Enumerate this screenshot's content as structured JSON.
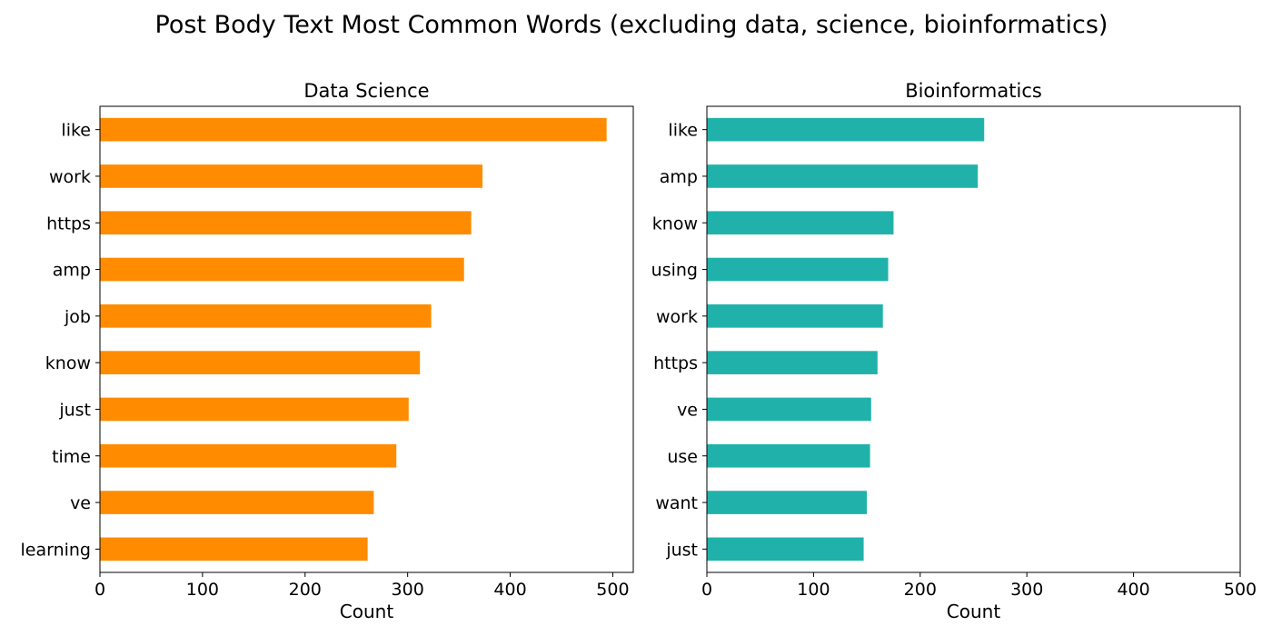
{
  "figure": {
    "title": "Post Body Text Most Common Words (excluding data, science, bioinformatics)"
  },
  "chart_data": [
    {
      "type": "bar",
      "orientation": "horizontal",
      "title": "Data Science",
      "xlabel": "Count",
      "ylabel": "",
      "xlim": [
        0,
        520
      ],
      "xticks": [
        0,
        100,
        200,
        300,
        400,
        500
      ],
      "color": "#ff8c00",
      "grid": false,
      "categories": [
        "like",
        "work",
        "https",
        "amp",
        "job",
        "know",
        "just",
        "time",
        "ve",
        "learning"
      ],
      "values": [
        494,
        373,
        362,
        355,
        323,
        312,
        301,
        289,
        267,
        261
      ]
    },
    {
      "type": "bar",
      "orientation": "horizontal",
      "title": "Bioinformatics",
      "xlabel": "Count",
      "ylabel": "",
      "xlim": [
        0,
        500
      ],
      "xticks": [
        0,
        100,
        200,
        300,
        400,
        500
      ],
      "color": "#20b2aa",
      "grid": false,
      "categories": [
        "like",
        "amp",
        "know",
        "using",
        "work",
        "https",
        "ve",
        "use",
        "want",
        "just"
      ],
      "values": [
        260,
        254,
        175,
        170,
        165,
        160,
        154,
        153,
        150,
        147
      ]
    }
  ]
}
